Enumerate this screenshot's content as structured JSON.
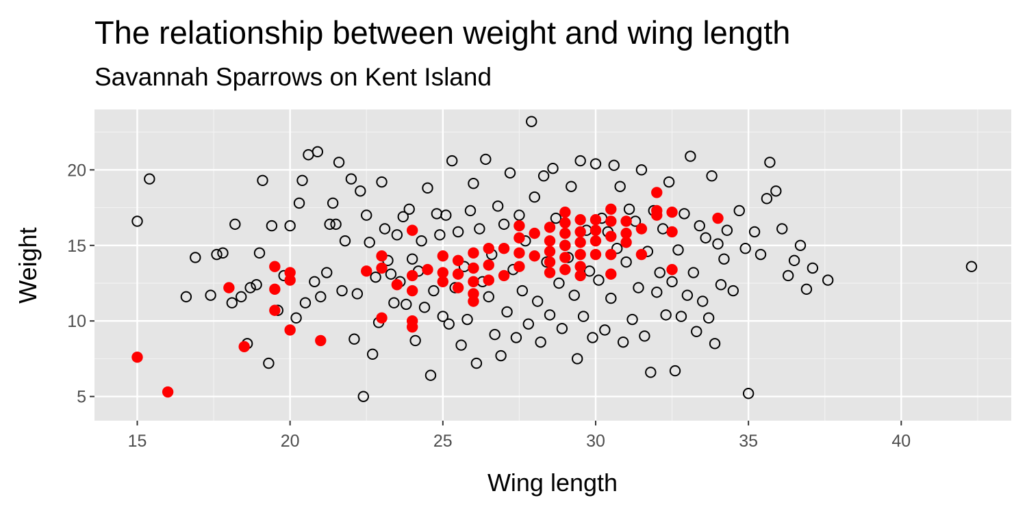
{
  "chart_data": {
    "type": "scatter",
    "title": "The relationship between weight and wing length",
    "subtitle": "Savannah Sparrows on Kent Island",
    "xlabel": "Wing length",
    "ylabel": "Weight",
    "xlim": [
      13.6,
      43.6
    ],
    "ylim": [
      3.4,
      24.0
    ],
    "x_ticks": [
      15,
      20,
      25,
      30,
      35,
      40
    ],
    "y_ticks": [
      5,
      10,
      15,
      20
    ],
    "grid": true,
    "background": "#e5e5e5",
    "legend": "none",
    "series": [
      {
        "style": "open-circle",
        "color": "#000000",
        "points": [
          [
            15.0,
            16.6
          ],
          [
            15.4,
            19.4
          ],
          [
            16.6,
            11.6
          ],
          [
            16.9,
            14.2
          ],
          [
            17.4,
            11.7
          ],
          [
            17.6,
            14.4
          ],
          [
            17.8,
            14.5
          ],
          [
            18.1,
            11.2
          ],
          [
            18.2,
            16.4
          ],
          [
            18.4,
            11.6
          ],
          [
            18.6,
            8.5
          ],
          [
            18.7,
            12.2
          ],
          [
            18.9,
            12.4
          ],
          [
            19.0,
            14.5
          ],
          [
            19.1,
            19.3
          ],
          [
            19.3,
            7.2
          ],
          [
            19.4,
            16.3
          ],
          [
            19.6,
            10.7
          ],
          [
            19.8,
            13.0
          ],
          [
            20.0,
            16.3
          ],
          [
            20.2,
            10.2
          ],
          [
            20.3,
            17.8
          ],
          [
            20.4,
            19.3
          ],
          [
            20.5,
            11.2
          ],
          [
            20.6,
            21.0
          ],
          [
            20.8,
            12.6
          ],
          [
            20.9,
            21.2
          ],
          [
            21.0,
            11.6
          ],
          [
            21.2,
            13.2
          ],
          [
            21.3,
            16.4
          ],
          [
            21.4,
            17.8
          ],
          [
            21.5,
            16.4
          ],
          [
            21.6,
            20.5
          ],
          [
            21.7,
            12.0
          ],
          [
            21.8,
            15.3
          ],
          [
            22.0,
            19.4
          ],
          [
            22.1,
            8.8
          ],
          [
            22.2,
            11.8
          ],
          [
            22.3,
            18.6
          ],
          [
            22.4,
            5.0
          ],
          [
            22.5,
            17.0
          ],
          [
            22.6,
            15.2
          ],
          [
            22.7,
            7.8
          ],
          [
            22.8,
            12.9
          ],
          [
            22.9,
            9.9
          ],
          [
            23.0,
            19.2
          ],
          [
            23.1,
            16.1
          ],
          [
            23.2,
            14.0
          ],
          [
            23.3,
            13.1
          ],
          [
            23.4,
            11.2
          ],
          [
            23.5,
            15.7
          ],
          [
            23.6,
            12.6
          ],
          [
            23.7,
            16.9
          ],
          [
            23.8,
            11.1
          ],
          [
            23.9,
            17.4
          ],
          [
            24.0,
            14.1
          ],
          [
            24.1,
            8.7
          ],
          [
            24.2,
            13.3
          ],
          [
            24.3,
            15.3
          ],
          [
            24.4,
            10.9
          ],
          [
            24.5,
            18.8
          ],
          [
            24.6,
            6.4
          ],
          [
            24.7,
            12.0
          ],
          [
            24.8,
            17.1
          ],
          [
            24.9,
            15.7
          ],
          [
            25.0,
            10.3
          ],
          [
            25.1,
            17.0
          ],
          [
            25.2,
            9.8
          ],
          [
            25.3,
            20.6
          ],
          [
            25.4,
            12.2
          ],
          [
            25.5,
            15.9
          ],
          [
            25.6,
            8.4
          ],
          [
            25.7,
            13.6
          ],
          [
            25.8,
            10.1
          ],
          [
            25.9,
            17.3
          ],
          [
            26.0,
            19.1
          ],
          [
            26.1,
            7.2
          ],
          [
            26.2,
            16.1
          ],
          [
            26.3,
            12.6
          ],
          [
            26.4,
            20.7
          ],
          [
            26.5,
            11.6
          ],
          [
            26.6,
            14.4
          ],
          [
            26.7,
            9.1
          ],
          [
            26.8,
            17.6
          ],
          [
            26.9,
            7.7
          ],
          [
            27.0,
            16.4
          ],
          [
            27.1,
            10.6
          ],
          [
            27.2,
            19.8
          ],
          [
            27.3,
            13.4
          ],
          [
            27.4,
            8.9
          ],
          [
            27.5,
            17.0
          ],
          [
            27.6,
            12.0
          ],
          [
            27.7,
            15.3
          ],
          [
            27.8,
            9.8
          ],
          [
            27.9,
            23.2
          ],
          [
            28.0,
            18.2
          ],
          [
            28.1,
            11.3
          ],
          [
            28.2,
            8.6
          ],
          [
            28.3,
            19.6
          ],
          [
            28.4,
            13.9
          ],
          [
            28.5,
            10.4
          ],
          [
            28.6,
            20.1
          ],
          [
            28.7,
            16.8
          ],
          [
            28.8,
            12.5
          ],
          [
            28.9,
            9.5
          ],
          [
            29.0,
            15.0
          ],
          [
            29.1,
            14.2
          ],
          [
            29.2,
            18.9
          ],
          [
            29.3,
            11.7
          ],
          [
            29.4,
            7.5
          ],
          [
            29.5,
            20.6
          ],
          [
            29.6,
            10.3
          ],
          [
            29.7,
            16.0
          ],
          [
            29.8,
            13.3
          ],
          [
            29.9,
            8.9
          ],
          [
            30.0,
            20.4
          ],
          [
            30.1,
            12.7
          ],
          [
            30.2,
            16.8
          ],
          [
            30.3,
            9.4
          ],
          [
            30.4,
            15.9
          ],
          [
            30.5,
            11.5
          ],
          [
            30.6,
            20.3
          ],
          [
            30.7,
            14.8
          ],
          [
            30.8,
            18.9
          ],
          [
            30.9,
            8.6
          ],
          [
            31.0,
            13.9
          ],
          [
            31.1,
            17.4
          ],
          [
            31.2,
            10.1
          ],
          [
            31.3,
            16.6
          ],
          [
            31.4,
            12.2
          ],
          [
            31.5,
            20.0
          ],
          [
            31.6,
            9.0
          ],
          [
            31.7,
            14.6
          ],
          [
            31.8,
            6.6
          ],
          [
            31.9,
            17.3
          ],
          [
            32.0,
            11.9
          ],
          [
            32.1,
            13.2
          ],
          [
            32.2,
            16.1
          ],
          [
            32.3,
            10.4
          ],
          [
            32.4,
            19.2
          ],
          [
            32.5,
            12.6
          ],
          [
            32.6,
            6.7
          ],
          [
            32.7,
            14.7
          ],
          [
            32.8,
            10.3
          ],
          [
            32.9,
            17.1
          ],
          [
            33.0,
            11.7
          ],
          [
            33.1,
            20.9
          ],
          [
            33.2,
            13.2
          ],
          [
            33.3,
            9.3
          ],
          [
            33.4,
            16.3
          ],
          [
            33.5,
            11.3
          ],
          [
            33.6,
            15.5
          ],
          [
            33.7,
            10.2
          ],
          [
            33.8,
            19.6
          ],
          [
            33.9,
            8.5
          ],
          [
            34.0,
            15.1
          ],
          [
            34.1,
            12.4
          ],
          [
            34.2,
            14.1
          ],
          [
            34.3,
            16.0
          ],
          [
            34.5,
            12.0
          ],
          [
            34.7,
            17.3
          ],
          [
            34.9,
            14.8
          ],
          [
            35.0,
            5.2
          ],
          [
            35.2,
            15.9
          ],
          [
            35.4,
            14.4
          ],
          [
            35.6,
            18.1
          ],
          [
            35.7,
            20.5
          ],
          [
            35.9,
            18.6
          ],
          [
            36.1,
            16.1
          ],
          [
            36.3,
            13.0
          ],
          [
            36.5,
            14.0
          ],
          [
            36.7,
            15.0
          ],
          [
            36.9,
            12.1
          ],
          [
            37.1,
            13.5
          ],
          [
            37.6,
            12.7
          ],
          [
            42.3,
            13.6
          ]
        ]
      },
      {
        "style": "filled-circle",
        "color": "#ff0000",
        "points": [
          [
            15.0,
            7.6
          ],
          [
            16.0,
            5.3
          ],
          [
            18.0,
            12.2
          ],
          [
            18.5,
            8.3
          ],
          [
            19.5,
            13.6
          ],
          [
            19.5,
            12.1
          ],
          [
            19.5,
            10.7
          ],
          [
            20.0,
            12.7
          ],
          [
            20.0,
            13.2
          ],
          [
            20.0,
            9.4
          ],
          [
            21.0,
            8.7
          ],
          [
            22.5,
            13.3
          ],
          [
            23.0,
            14.3
          ],
          [
            23.0,
            13.5
          ],
          [
            23.0,
            10.2
          ],
          [
            23.5,
            12.4
          ],
          [
            24.0,
            16.0
          ],
          [
            24.0,
            13.0
          ],
          [
            24.0,
            12.0
          ],
          [
            24.0,
            10.0
          ],
          [
            24.0,
            9.6
          ],
          [
            24.5,
            13.4
          ],
          [
            25.0,
            14.3
          ],
          [
            25.0,
            12.6
          ],
          [
            25.0,
            13.2
          ],
          [
            25.5,
            14.0
          ],
          [
            25.5,
            13.1
          ],
          [
            25.5,
            12.2
          ],
          [
            26.0,
            14.5
          ],
          [
            26.0,
            13.5
          ],
          [
            26.0,
            12.6
          ],
          [
            26.0,
            11.8
          ],
          [
            26.0,
            11.3
          ],
          [
            26.5,
            14.8
          ],
          [
            26.5,
            13.7
          ],
          [
            26.5,
            12.7
          ],
          [
            27.0,
            14.8
          ],
          [
            27.0,
            13.0
          ],
          [
            27.5,
            16.3
          ],
          [
            27.5,
            15.5
          ],
          [
            27.5,
            14.5
          ],
          [
            27.5,
            13.6
          ],
          [
            28.0,
            15.8
          ],
          [
            28.0,
            14.3
          ],
          [
            28.5,
            16.2
          ],
          [
            28.5,
            15.3
          ],
          [
            28.5,
            14.6
          ],
          [
            28.5,
            13.9
          ],
          [
            28.5,
            13.2
          ],
          [
            29.0,
            17.2
          ],
          [
            29.0,
            16.5
          ],
          [
            29.0,
            15.8
          ],
          [
            29.0,
            15.0
          ],
          [
            29.0,
            14.2
          ],
          [
            29.0,
            13.4
          ],
          [
            29.5,
            16.7
          ],
          [
            29.5,
            15.9
          ],
          [
            29.5,
            15.2
          ],
          [
            29.5,
            14.4
          ],
          [
            29.5,
            13.6
          ],
          [
            29.5,
            13.0
          ],
          [
            30.0,
            16.7
          ],
          [
            30.0,
            16.0
          ],
          [
            30.0,
            15.3
          ],
          [
            30.0,
            14.4
          ],
          [
            30.5,
            17.4
          ],
          [
            30.5,
            16.6
          ],
          [
            30.5,
            15.6
          ],
          [
            30.5,
            14.4
          ],
          [
            30.5,
            13.1
          ],
          [
            31.0,
            16.6
          ],
          [
            31.0,
            15.8
          ],
          [
            31.0,
            15.2
          ],
          [
            31.5,
            16.1
          ],
          [
            31.5,
            14.4
          ],
          [
            32.0,
            18.5
          ],
          [
            32.0,
            17.3
          ],
          [
            32.0,
            17.0
          ],
          [
            32.5,
            17.2
          ],
          [
            32.5,
            15.9
          ],
          [
            32.5,
            13.4
          ],
          [
            34.0,
            16.8
          ]
        ]
      }
    ]
  },
  "colors": {
    "panel_background": "#e5e5e5",
    "grid_major": "#ffffff",
    "tick_text": "#4d4d4d",
    "highlight": "#ff0000"
  }
}
